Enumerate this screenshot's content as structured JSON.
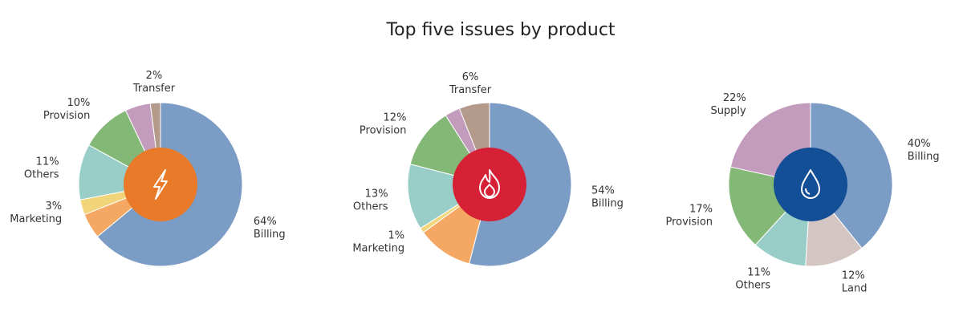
{
  "title": "Top five issues by product",
  "chart_data": [
    {
      "type": "donut",
      "center_color": "#e87a2a",
      "categories": [
        "Billing",
        null,
        "Marketing",
        "Others",
        "Provision",
        null,
        "Transfer"
      ],
      "values": [
        64,
        5,
        3,
        11,
        10,
        5,
        2
      ],
      "value_labels": [
        "64%",
        null,
        "3%",
        "11%",
        "10%",
        null,
        "2%"
      ],
      "colors": [
        "#7b9cc4",
        "#f5a863",
        "#f2d47a",
        "#98cdc8",
        "#84b877",
        "#c39bbd",
        "#b49a8a"
      ]
    },
    {
      "type": "donut",
      "center_color": "#d62035",
      "categories": [
        "Billing",
        null,
        "Marketing",
        "Others",
        "Provision",
        null,
        "Transfer"
      ],
      "values": [
        54,
        11,
        1,
        13,
        12,
        3,
        6
      ],
      "value_labels": [
        "54%",
        null,
        "1%",
        "13%",
        "12%",
        null,
        "6%"
      ],
      "colors": [
        "#7b9cc4",
        "#f5a863",
        "#f2d47a",
        "#98cdc8",
        "#84b877",
        "#c39bbd",
        "#b49a8a"
      ]
    },
    {
      "type": "donut",
      "center_color": "#124f96",
      "categories": [
        "Billing",
        "Land",
        "Others",
        "Provision",
        "Supply"
      ],
      "values": [
        40,
        12,
        11,
        17,
        22
      ],
      "value_labels": [
        "40%",
        "12%",
        "11%",
        "17%",
        "22%"
      ],
      "colors": [
        "#7b9cc4",
        "#d3c5c1",
        "#98cdc8",
        "#84b877",
        "#c39bbd"
      ]
    }
  ]
}
